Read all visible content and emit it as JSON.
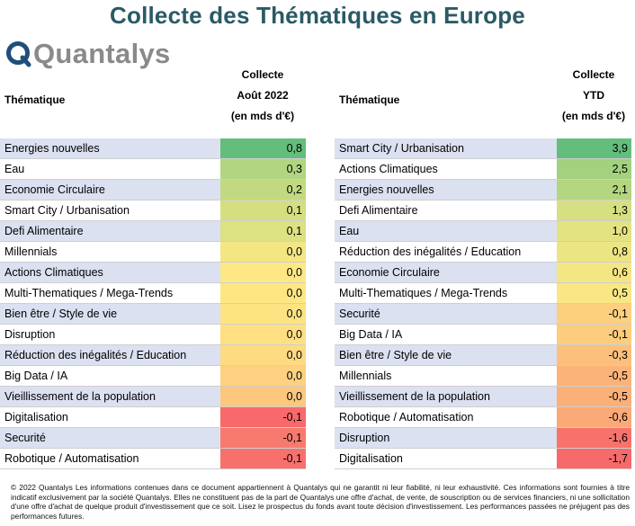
{
  "title": "Collecte des Thématiques en Europe",
  "logo": {
    "text": "Quantalys",
    "mark_color": "#1f4f7a"
  },
  "left": {
    "header_theme": "Thématique",
    "header_col": [
      "Collecte",
      "Août 2022",
      "(en mds d'€)"
    ],
    "rows": [
      {
        "name": "Energies nouvelles",
        "value": "0,8",
        "color": "#63be7b",
        "shade": true
      },
      {
        "name": "Eau",
        "value": "0,3",
        "color": "#b1d581",
        "shade": false
      },
      {
        "name": "Economie Circulaire",
        "value": "0,2",
        "color": "#c1da81",
        "shade": true
      },
      {
        "name": "Smart City / Urbanisation",
        "value": "0,1",
        "color": "#d4df82",
        "shade": false
      },
      {
        "name": "Defi Alimentaire",
        "value": "0,1",
        "color": "#dce182",
        "shade": true
      },
      {
        "name": "Millennials",
        "value": "0,0",
        "color": "#f4e683",
        "shade": false
      },
      {
        "name": "Actions Climatiques",
        "value": "0,0",
        "color": "#fee883",
        "shade": true
      },
      {
        "name": "Multi-Thematiques / Mega-Trends",
        "value": "0,0",
        "color": "#fee783",
        "shade": false
      },
      {
        "name": "Bien être / Style de vie",
        "value": "0,0",
        "color": "#fee382",
        "shade": true
      },
      {
        "name": "Disruption",
        "value": "0,0",
        "color": "#fee082",
        "shade": false
      },
      {
        "name": "Réduction des inégalités / Education",
        "value": "0,0",
        "color": "#fedb81",
        "shade": true
      },
      {
        "name": "Big Data / IA",
        "value": "0,0",
        "color": "#fdd17f",
        "shade": false
      },
      {
        "name": "Vieillissement de la population",
        "value": "0,0",
        "color": "#fdc77d",
        "shade": true
      },
      {
        "name": "Digitalisation",
        "value": "-0,1",
        "color": "#f8696b",
        "shade": false
      },
      {
        "name": "Securité",
        "value": "-0,1",
        "color": "#f87a6e",
        "shade": true
      },
      {
        "name": "Robotique / Automatisation",
        "value": "-0,1",
        "color": "#f8706c",
        "shade": false
      }
    ]
  },
  "right": {
    "header_theme": "Thématique",
    "header_col": [
      "Collecte",
      "YTD",
      "(en mds d'€)"
    ],
    "rows": [
      {
        "name": "Smart City / Urbanisation",
        "value": "3,9",
        "color": "#63be7b",
        "shade": true
      },
      {
        "name": "Actions Climatiques",
        "value": "2,5",
        "color": "#a3d17f",
        "shade": false
      },
      {
        "name": "Energies nouvelles",
        "value": "2,1",
        "color": "#b4d680",
        "shade": true
      },
      {
        "name": "Defi Alimentaire",
        "value": "1,3",
        "color": "#d6e082",
        "shade": false
      },
      {
        "name": "Eau",
        "value": "1,0",
        "color": "#e4e382",
        "shade": true
      },
      {
        "name": "Réduction des inégalités / Education",
        "value": "0,8",
        "color": "#ece583",
        "shade": false
      },
      {
        "name": "Economie Circulaire",
        "value": "0,6",
        "color": "#f4e683",
        "shade": true
      },
      {
        "name": "Multi-Thematiques / Mega-Trends",
        "value": "0,5",
        "color": "#f8e783",
        "shade": false
      },
      {
        "name": "Securité",
        "value": "-0,1",
        "color": "#fdd07f",
        "shade": true
      },
      {
        "name": "Big Data / IA",
        "value": "-0,1",
        "color": "#fdcd7e",
        "shade": false
      },
      {
        "name": "Bien être / Style de vie",
        "value": "-0,3",
        "color": "#fcc07c",
        "shade": true
      },
      {
        "name": "Millennials",
        "value": "-0,5",
        "color": "#fcb37a",
        "shade": false
      },
      {
        "name": "Vieillissement de la population",
        "value": "-0,5",
        "color": "#fbb078",
        "shade": true
      },
      {
        "name": "Robotique / Automatisation",
        "value": "-0,6",
        "color": "#fba977",
        "shade": false
      },
      {
        "name": "Disruption",
        "value": "-1,6",
        "color": "#f8726c",
        "shade": true
      },
      {
        "name": "Digitalisation",
        "value": "-1,7",
        "color": "#f8696b",
        "shade": false
      }
    ]
  },
  "footer": "© 2022 Quantalys Les informations contenues dans ce document appartiennent à Quantalys qui ne garantit ni leur fiabilité, ni leur exhaustivité. Ces informations sont fournies à titre indicatif exclusivement par la société Quantalys. Elles ne constituent pas de la part de Quantalys une offre d'achat, de vente, de souscription ou de services financiers, ni une sollicitation d'une offre d'achat de quelque produit d'investissement que ce soit. Lisez le prospectus du fonds avant toute décision d'investissement. Les performances passées ne préjugent pas des performances futures."
}
